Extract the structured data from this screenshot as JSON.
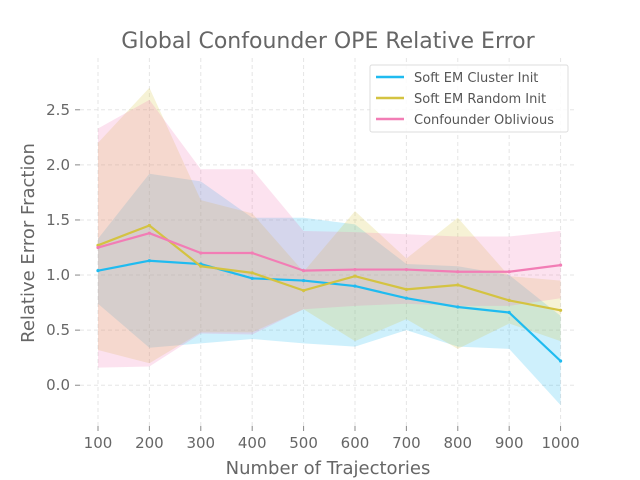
{
  "chart_data": {
    "type": "line",
    "title": "Global Confounder OPE Relative Error",
    "xlabel": "Number of Trajectories",
    "ylabel": "Relative Error Fraction",
    "x": [
      100,
      200,
      300,
      400,
      500,
      600,
      700,
      800,
      900,
      1000
    ],
    "x_tick_labels": [
      "100",
      "200",
      "300",
      "400",
      "500",
      "600",
      "700",
      "800",
      "900",
      "1000"
    ],
    "y_ticks": [
      0.0,
      0.5,
      1.0,
      1.5,
      2.0,
      2.5
    ],
    "y_tick_labels": [
      "0.0",
      "0.5",
      "1.0",
      "1.5",
      "2.0",
      "2.5"
    ],
    "xlim": [
      65,
      1030
    ],
    "ylim": [
      -0.37,
      2.97
    ],
    "grid": true,
    "legend_position": "top-right",
    "series": [
      {
        "name": "Soft EM Cluster Init",
        "color": "#1fbbf0",
        "values": [
          1.04,
          1.13,
          1.1,
          0.97,
          0.95,
          0.9,
          0.79,
          0.71,
          0.66,
          0.22
        ],
        "lower": [
          0.74,
          0.34,
          0.38,
          0.42,
          0.38,
          0.35,
          0.5,
          0.35,
          0.33,
          -0.18
        ],
        "upper": [
          1.33,
          1.92,
          1.85,
          1.52,
          1.52,
          1.46,
          1.1,
          1.08,
          1.0,
          0.63
        ]
      },
      {
        "name": "Soft EM Random Init",
        "color": "#d4c341",
        "values": [
          1.27,
          1.45,
          1.08,
          1.02,
          0.86,
          0.99,
          0.87,
          0.91,
          0.77,
          0.68
        ],
        "lower": [
          0.32,
          0.2,
          0.48,
          0.48,
          0.69,
          0.4,
          0.6,
          0.33,
          0.56,
          0.4
        ],
        "upper": [
          2.2,
          2.7,
          1.68,
          1.56,
          1.03,
          1.58,
          1.15,
          1.52,
          0.99,
          0.95
        ]
      },
      {
        "name": "Confounder Oblivious",
        "color": "#f27db5",
        "values": [
          1.25,
          1.38,
          1.2,
          1.2,
          1.04,
          1.05,
          1.05,
          1.03,
          1.03,
          1.09
        ],
        "lower": [
          0.16,
          0.17,
          0.47,
          0.46,
          0.69,
          0.72,
          0.74,
          0.72,
          0.72,
          0.79
        ],
        "upper": [
          2.33,
          2.59,
          1.96,
          1.96,
          1.4,
          1.39,
          1.37,
          1.35,
          1.35,
          1.4
        ]
      }
    ]
  }
}
